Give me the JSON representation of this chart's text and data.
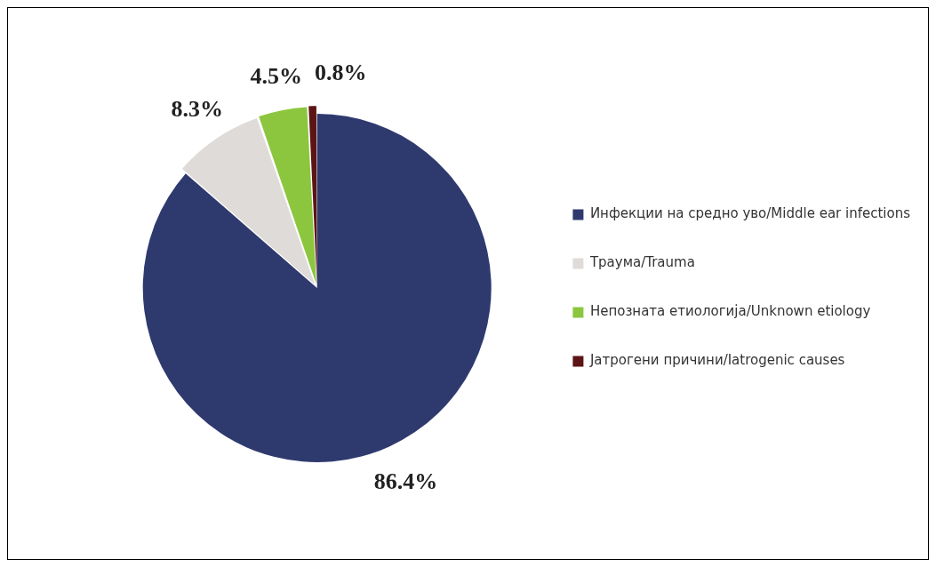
{
  "chart_data": {
    "type": "pie",
    "categories": [
      "Инфекции на средно уво/Middle ear infections",
      "Траума/Trauma",
      "Непозната етиологија/Unknown etiology",
      "Јатрогени причини/Iatrogenic causes"
    ],
    "values": [
      86.4,
      8.3,
      4.5,
      0.8
    ],
    "colors": [
      "#2e3a6e",
      "#dedbd8",
      "#8cc63f",
      "#5c1414"
    ],
    "value_labels": [
      "86.4%",
      "8.3%",
      "4.5%",
      "0.8%"
    ],
    "legend": "right"
  }
}
